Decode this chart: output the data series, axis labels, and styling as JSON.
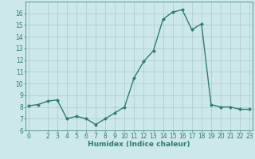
{
  "title": "",
  "xlabel": "Humidex (Indice chaleur)",
  "ylabel": "",
  "x": [
    0,
    1,
    2,
    3,
    4,
    5,
    6,
    7,
    8,
    9,
    10,
    11,
    12,
    13,
    14,
    15,
    16,
    17,
    18,
    19,
    20,
    21,
    22,
    23
  ],
  "y": [
    8.1,
    8.2,
    8.5,
    8.6,
    7.0,
    7.2,
    7.0,
    6.5,
    7.0,
    7.5,
    8.0,
    10.5,
    11.9,
    12.8,
    15.5,
    16.1,
    16.3,
    14.6,
    15.1,
    8.2,
    8.0,
    8.0,
    7.8,
    7.8
  ],
  "line_color": "#2e7d6e",
  "marker": "D",
  "marker_size": 2.0,
  "line_width": 1.0,
  "bg_color": "#cce8e8",
  "grid_color": "#adc8c8",
  "tick_color": "#2e7d6e",
  "label_color": "#2e7d6e",
  "ylim": [
    6,
    17
  ],
  "xlim": [
    -0.3,
    23.3
  ],
  "yticks": [
    6,
    7,
    8,
    9,
    10,
    11,
    12,
    13,
    14,
    15,
    16
  ],
  "xticks": [
    0,
    2,
    3,
    4,
    5,
    6,
    7,
    8,
    9,
    10,
    11,
    12,
    13,
    14,
    15,
    16,
    17,
    18,
    19,
    20,
    21,
    22,
    23
  ],
  "xlabel_fontsize": 6.5,
  "tick_fontsize": 5.5
}
